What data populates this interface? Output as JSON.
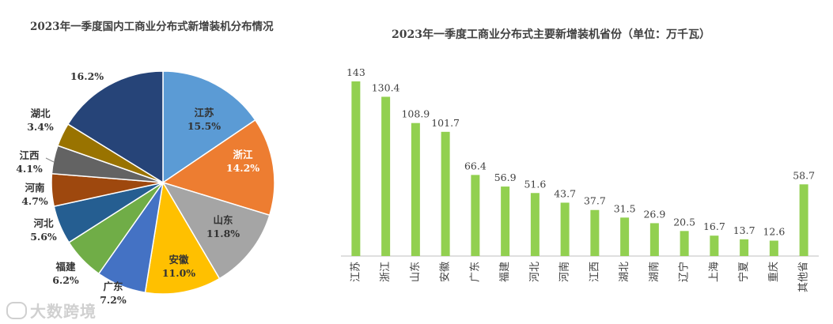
{
  "chart_data": [
    {
      "type": "pie",
      "title": "2023年一季度国内工商业分布式新增装机分布情况",
      "slices": [
        {
          "label": "江苏",
          "value": 15.5,
          "display": "15.5%",
          "color": "#5B9BD5"
        },
        {
          "label": "浙江",
          "value": 14.2,
          "display": "14.2%",
          "color": "#ED7D31"
        },
        {
          "label": "山东",
          "value": 11.8,
          "display": "11.8%",
          "color": "#A5A5A5"
        },
        {
          "label": "安徽",
          "value": 11.0,
          "display": "11.0%",
          "color": "#FFC000"
        },
        {
          "label": "广东",
          "value": 7.2,
          "display": "7.2%",
          "color": "#4472C4"
        },
        {
          "label": "福建",
          "value": 6.2,
          "display": "6.2%",
          "color": "#70AD47"
        },
        {
          "label": "河北",
          "value": 5.6,
          "display": "5.6%",
          "color": "#255E91"
        },
        {
          "label": "河南",
          "value": 4.7,
          "display": "4.7%",
          "color": "#9E480E"
        },
        {
          "label": "江西",
          "value": 4.1,
          "display": "4.1%",
          "color": "#636363"
        },
        {
          "label": "湖北",
          "value": 3.4,
          "display": "3.4%",
          "color": "#997300"
        },
        {
          "label": "",
          "value": 16.2,
          "display": "16.2%",
          "color": "#264478"
        }
      ]
    },
    {
      "type": "bar",
      "title": "2023年一季度工商业分布式主要新增装机省份（单位：万千瓦）",
      "categories": [
        "江苏",
        "浙江",
        "山东",
        "安徽",
        "广东",
        "福建",
        "河北",
        "河南",
        "江西",
        "湖北",
        "湖南",
        "辽宁",
        "上海",
        "宁夏",
        "重庆",
        "其他省"
      ],
      "values": [
        143,
        130.4,
        108.9,
        101.7,
        66.4,
        56.9,
        51.6,
        43.7,
        37.7,
        31.5,
        26.9,
        20.5,
        16.7,
        13.7,
        12.6,
        58.7
      ],
      "value_labels": [
        "143",
        "130.4",
        "108.9",
        "101.7",
        "66.4",
        "56.9",
        "51.6",
        "43.7",
        "37.7",
        "31.5",
        "26.9",
        "20.5",
        "16.7",
        "13.7",
        "12.6",
        "58.7"
      ],
      "ylim": [
        0,
        150
      ],
      "bar_color": "#92D050",
      "grid": false
    }
  ],
  "watermark": "大数跨境"
}
